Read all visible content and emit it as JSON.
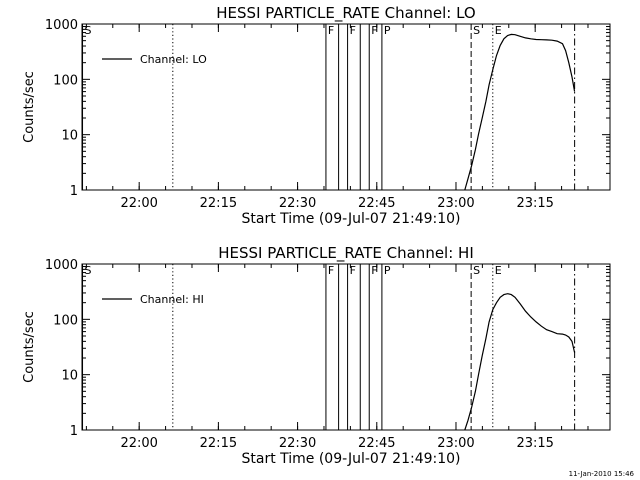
{
  "footer_timestamp": "11-Jan-2010 15:46",
  "chart_data": [
    {
      "type": "line",
      "title": "HESSI PARTICLE_RATE Channel: LO",
      "xlabel": "Start Time (09-Jul-07 21:49:10)",
      "ylabel": "Counts/sec",
      "x_unit": "minutes after 21:49:10",
      "xlim": [
        0,
        100
      ],
      "ylim": [
        1,
        1000
      ],
      "y_scale": "log",
      "x_ticks": [
        {
          "value": 10.83,
          "label": "22:00"
        },
        {
          "value": 25.83,
          "label": "22:15"
        },
        {
          "value": 40.83,
          "label": "22:30"
        },
        {
          "value": 55.83,
          "label": "22:45"
        },
        {
          "value": 70.83,
          "label": "23:00"
        },
        {
          "value": 85.83,
          "label": "23:15"
        }
      ],
      "y_ticks": [
        {
          "value": 1,
          "label": "1"
        },
        {
          "value": 10,
          "label": "10"
        },
        {
          "value": 100,
          "label": "100"
        },
        {
          "value": 1000,
          "label": "1000"
        }
      ],
      "legend": {
        "label": "Channel: LO",
        "position": "top-left"
      },
      "markers": [
        {
          "x": 0.1,
          "style": "solid",
          "label": "S"
        },
        {
          "x": 17.2,
          "style": "dotted",
          "label": ""
        },
        {
          "x": 46.2,
          "style": "solid",
          "label": "F"
        },
        {
          "x": 48.6,
          "style": "solid",
          "label": ""
        },
        {
          "x": 50.3,
          "style": "solid",
          "label": "F"
        },
        {
          "x": 52.7,
          "style": "solid",
          "label": ""
        },
        {
          "x": 54.4,
          "style": "solid",
          "label": "F"
        },
        {
          "x": 56.8,
          "style": "solid",
          "label": "P"
        },
        {
          "x": 73.7,
          "style": "dashed",
          "label": "S"
        },
        {
          "x": 77.8,
          "style": "dotted",
          "label": "E"
        },
        {
          "x": 93.3,
          "style": "dashdot",
          "label": ""
        }
      ],
      "series": [
        {
          "x": [
            72.5,
            73.1,
            73.8,
            74.5,
            75.1,
            75.8,
            76.5,
            77.1,
            77.8,
            78.5,
            79.2,
            79.9,
            80.6,
            81.3,
            82.0,
            83.0,
            84.0,
            85.0,
            86.0,
            87.0,
            88.0,
            89.0,
            90.0,
            91.0,
            91.6,
            92.2,
            92.8,
            93.3
          ],
          "y": [
            1.0,
            1.6,
            2.8,
            5.4,
            10.2,
            20,
            40,
            80,
            150,
            270,
            410,
            540,
            620,
            650,
            640,
            600,
            560,
            540,
            525,
            520,
            515,
            510,
            490,
            440,
            330,
            200,
            110,
            60
          ]
        }
      ]
    },
    {
      "type": "line",
      "title": "HESSI PARTICLE_RATE Channel: HI",
      "xlabel": "Start Time (09-Jul-07 21:49:10)",
      "ylabel": "Counts/sec",
      "x_unit": "minutes after 21:49:10",
      "xlim": [
        0,
        100
      ],
      "ylim": [
        1,
        1000
      ],
      "y_scale": "log",
      "x_ticks": [
        {
          "value": 10.83,
          "label": "22:00"
        },
        {
          "value": 25.83,
          "label": "22:15"
        },
        {
          "value": 40.83,
          "label": "22:30"
        },
        {
          "value": 55.83,
          "label": "22:45"
        },
        {
          "value": 70.83,
          "label": "23:00"
        },
        {
          "value": 85.83,
          "label": "23:15"
        }
      ],
      "y_ticks": [
        {
          "value": 1,
          "label": "1"
        },
        {
          "value": 10,
          "label": "10"
        },
        {
          "value": 100,
          "label": "100"
        },
        {
          "value": 1000,
          "label": "1000"
        }
      ],
      "legend": {
        "label": "Channel: HI",
        "position": "top-left"
      },
      "markers": [
        {
          "x": 0.1,
          "style": "solid",
          "label": "S"
        },
        {
          "x": 17.2,
          "style": "dotted",
          "label": ""
        },
        {
          "x": 46.2,
          "style": "solid",
          "label": "F"
        },
        {
          "x": 48.6,
          "style": "solid",
          "label": ""
        },
        {
          "x": 50.3,
          "style": "solid",
          "label": "F"
        },
        {
          "x": 52.7,
          "style": "solid",
          "label": ""
        },
        {
          "x": 54.4,
          "style": "solid",
          "label": "F"
        },
        {
          "x": 56.8,
          "style": "solid",
          "label": "P"
        },
        {
          "x": 73.7,
          "style": "dashed",
          "label": "S"
        },
        {
          "x": 77.8,
          "style": "dotted",
          "label": "E"
        },
        {
          "x": 93.3,
          "style": "dashdot",
          "label": ""
        }
      ],
      "series": [
        {
          "x": [
            72.5,
            73.1,
            73.8,
            74.5,
            75.1,
            75.8,
            76.5,
            77.1,
            77.8,
            78.5,
            79.2,
            79.9,
            80.6,
            81.3,
            82.0,
            83.0,
            84.0,
            85.0,
            86.0,
            87.0,
            88.0,
            89.0,
            90.0,
            91.0,
            91.6,
            92.2,
            92.8,
            93.3
          ],
          "y": [
            1.0,
            1.5,
            2.6,
            5,
            10,
            22,
            45,
            90,
            150,
            200,
            250,
            280,
            290,
            280,
            250,
            190,
            140,
            110,
            90,
            75,
            65,
            60,
            55,
            54,
            52,
            48,
            40,
            25
          ]
        }
      ]
    }
  ]
}
